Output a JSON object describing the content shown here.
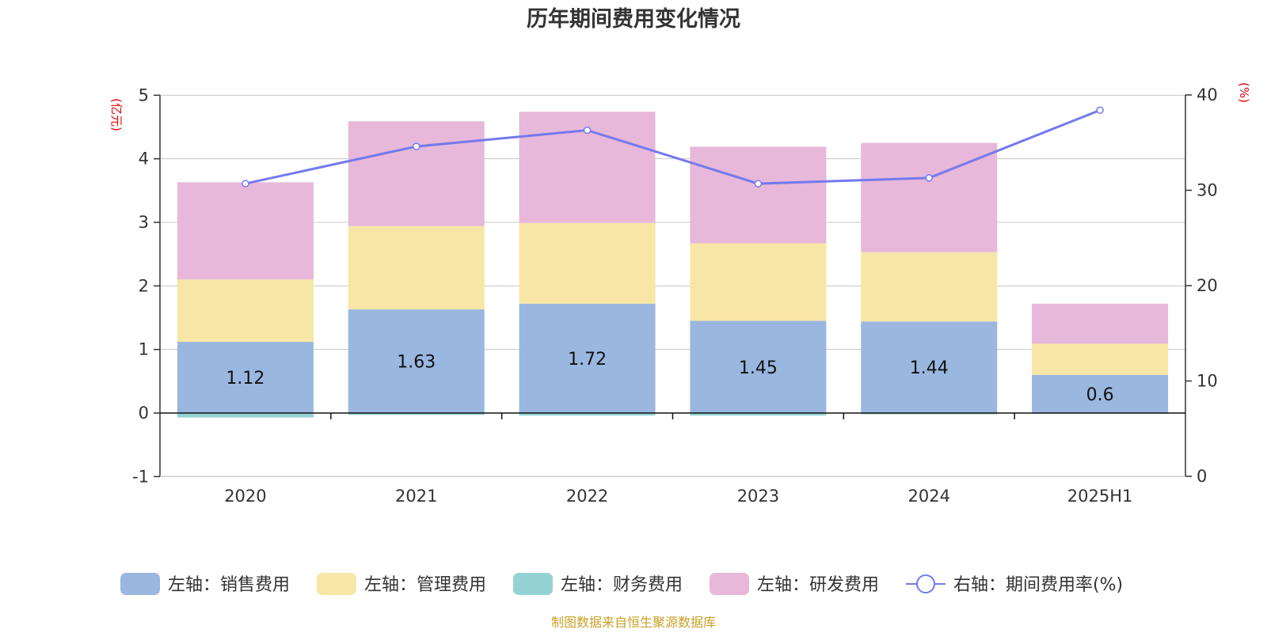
{
  "chart_data": {
    "type": "bar",
    "title": "历年期间费用变化情况",
    "categories": [
      "2020",
      "2021",
      "2022",
      "2023",
      "2024",
      "2025H1"
    ],
    "y_left": {
      "unit": "(亿元)",
      "ylim": [
        -1,
        5
      ],
      "ticks": [
        -1,
        0,
        1,
        2,
        3,
        4,
        5
      ]
    },
    "y_right": {
      "unit": "(%)",
      "ylim": [
        0,
        40
      ],
      "ticks": [
        0,
        10,
        20,
        30,
        40
      ]
    },
    "series": [
      {
        "name": "左轴：销售费用",
        "kind": "bar",
        "axis": "left",
        "color": "#9ab7e0",
        "values": [
          1.12,
          1.63,
          1.72,
          1.45,
          1.44,
          0.6
        ],
        "labels": [
          "1.12",
          "1.63",
          "1.72",
          "1.45",
          "1.44",
          "0.6"
        ]
      },
      {
        "name": "左轴：管理费用",
        "kind": "bar",
        "axis": "left",
        "color": "#f8e6a6",
        "values": [
          0.98,
          1.31,
          1.27,
          1.22,
          1.09,
          0.49
        ]
      },
      {
        "name": "左轴：财务费用",
        "kind": "bar",
        "axis": "left",
        "color": "#94d3d4",
        "values": [
          -0.07,
          -0.03,
          -0.04,
          -0.04,
          -0.02,
          -0.01
        ]
      },
      {
        "name": "左轴：研发费用",
        "kind": "bar",
        "axis": "left",
        "color": "#e7b8d9",
        "values": [
          1.53,
          1.65,
          1.75,
          1.52,
          1.72,
          0.63
        ]
      },
      {
        "name": "右轴：期间费用率(%)",
        "kind": "line",
        "axis": "right",
        "color": "#7479ee",
        "values": [
          30.7,
          34.6,
          36.3,
          30.7,
          31.3,
          38.4
        ]
      }
    ],
    "grid": true,
    "legend_position": "bottom"
  },
  "source_note": "制图数据来自恒生聚源数据库"
}
